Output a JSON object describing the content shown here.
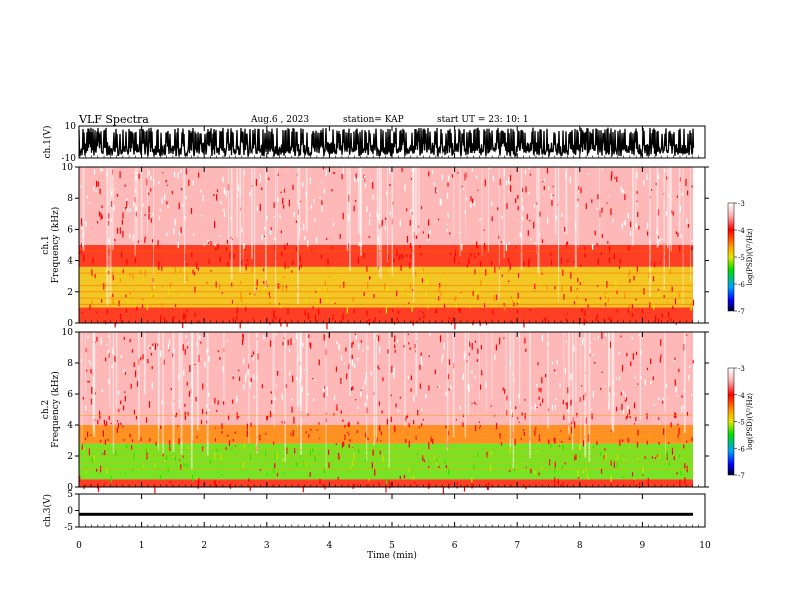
{
  "header": {
    "title": "VLF Spectra",
    "date": "Aug.6 , 2023",
    "station": "station= KAP",
    "start": "start UT = 23: 10: 1"
  },
  "chart_data": [
    {
      "type": "line",
      "panel": "waveform-ch1",
      "ylabel": "ch.1(V)",
      "ylim": [
        -10,
        10
      ],
      "yticks": [
        "10",
        "-10"
      ],
      "xlim": [
        0,
        10
      ],
      "description_values": "dense noisy waveform with envelope roughly between -10 and 10 V, limited to t ≈ 0–9.8 min"
    },
    {
      "type": "heatmap",
      "panel": "spectrogram-ch1",
      "ylabel": "ch.1\nFrequency (kHz)",
      "ylim": [
        0,
        10
      ],
      "yticks": [
        "0",
        "2",
        "4",
        "6",
        "8",
        "10"
      ],
      "xlim": [
        0,
        10
      ],
      "bands_khz": [
        {
          "from": 0.0,
          "to": 1.0,
          "level": "red"
        },
        {
          "from": 1.0,
          "to": 3.6,
          "level": "yellow-orange"
        },
        {
          "from": 3.6,
          "to": 5.0,
          "level": "red"
        },
        {
          "from": 5.0,
          "to": 10.0,
          "level": "sparse red"
        }
      ],
      "colorbar": {
        "label": "log(PSD)(V²/Hz)",
        "min": -7,
        "max": -3,
        "ticks": [
          "-3",
          "-4",
          "-5",
          "-6",
          "-7"
        ]
      }
    },
    {
      "type": "heatmap",
      "panel": "spectrogram-ch2",
      "ylabel": "ch.2\nFrequency (kHz)",
      "ylim": [
        0,
        10
      ],
      "yticks": [
        "0",
        "2",
        "4",
        "6",
        "8",
        "10"
      ],
      "xlim": [
        0,
        10
      ],
      "bands_khz": [
        {
          "from": 0.0,
          "to": 0.5,
          "level": "red"
        },
        {
          "from": 0.5,
          "to": 2.8,
          "level": "green-yellow"
        },
        {
          "from": 2.8,
          "to": 4.0,
          "level": "orange"
        },
        {
          "from": 4.0,
          "to": 10.0,
          "level": "sparse red"
        }
      ],
      "colorbar": {
        "label": "log(PSD)(V²/Hz)",
        "min": -7,
        "max": -3,
        "ticks": [
          "-3",
          "-4",
          "-5",
          "-6",
          "-7"
        ]
      }
    },
    {
      "type": "line",
      "panel": "waveform-ch3",
      "ylabel": "ch.3(V)",
      "ylim": [
        -5,
        5
      ],
      "yticks": [
        "5",
        "0",
        "-5"
      ],
      "xlim": [
        0,
        10
      ],
      "xlabel": "Time (min)",
      "xticks": [
        "0",
        "1",
        "2",
        "3",
        "4",
        "5",
        "6",
        "7",
        "8",
        "9",
        "10"
      ],
      "description_values": "nearly constant thick band at about -1 V from t = 0 to ≈ 9.8 min"
    }
  ],
  "colors": {
    "sparse": "#ff0000",
    "red": "#ff2000",
    "orange": "#ff8a00",
    "yellow": "#e8e800",
    "green": "#2ee800",
    "frame": "#000000"
  }
}
